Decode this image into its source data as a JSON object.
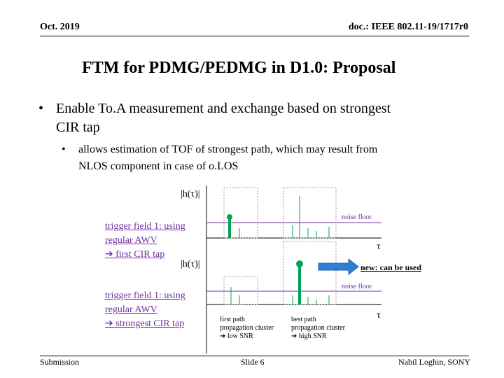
{
  "header": {
    "date": "Oct. 2019",
    "doc": "doc.: IEEE 802.11-19/1717r0"
  },
  "slide": {
    "title": "FTM for PDMG/PEDMG in D1.0: Proposal"
  },
  "bullets": {
    "main": [
      "Enable To.A measurement and exchange based on strongest",
      "CIR tap"
    ],
    "sub": [
      "allows estimation of TOF of strongest path, which may result from",
      "NLOS component in case of o.LOS"
    ]
  },
  "diagram": {
    "h_label": "|h(τ)|",
    "tau_label": "τ",
    "noise_floor": "noise floor",
    "trigger1": {
      "line1": "trigger field 1: using",
      "line2": "regular AWV",
      "arrow": "➔",
      "line3": "first CIR tap"
    },
    "trigger2": {
      "line1": "trigger field 1: using",
      "line2": "regular AWV",
      "arrow": "➔",
      "line3": "strongest CIR tap"
    },
    "new_label": "new: can be used",
    "first_path": {
      "line1": "first path",
      "line2": "propagation cluster",
      "arrow": "➔",
      "line3": "low SNR"
    },
    "best_path": {
      "line1": "best path",
      "line2": "propagation cluster",
      "arrow": "➔",
      "line3": "high SNR"
    },
    "colors": {
      "purple": "#7030a0",
      "green": "#00a651",
      "blue": "#2f7fd1"
    }
  },
  "footer": {
    "left": "Submission",
    "center": "Slide 6",
    "right": "Nabil Loghin, SONY"
  }
}
